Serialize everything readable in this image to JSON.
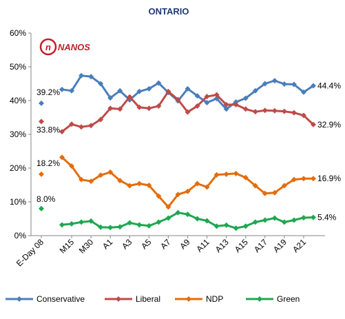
{
  "chart_data": {
    "type": "line",
    "title": "ONTARIO",
    "xlabel": "",
    "ylabel": "",
    "ylim": [
      0,
      60
    ],
    "y_ticks": [
      "0%",
      "10%",
      "20%",
      "30%",
      "40%",
      "50%",
      "60%"
    ],
    "y_tick_values": [
      0,
      10,
      20,
      30,
      40,
      50,
      60
    ],
    "x_tick_labels": [
      "E-Day 08",
      "M15",
      "M30",
      "A1",
      "A3",
      "A5",
      "A7",
      "A9",
      "A11",
      "A13",
      "A15",
      "A17",
      "A19",
      "A21"
    ],
    "grid": false,
    "legend_position": "bottom",
    "logo_text": "NANOS",
    "baseline": {
      "label": "E-Day 08",
      "Conservative": 39.2,
      "Liberal": 33.8,
      "NDP": 18.2,
      "Green": 8.0
    },
    "series": [
      {
        "name": "Conservative",
        "color": "#4a7ebb",
        "values": [
          43.3,
          42.9,
          47.4,
          47.1,
          45.0,
          40.8,
          42.9,
          40.2,
          42.7,
          43.5,
          45.2,
          42.4,
          39.9,
          43.5,
          41.4,
          39.4,
          40.6,
          37.5,
          39.6,
          40.7,
          42.9,
          45.0,
          45.9,
          44.9,
          44.8,
          42.5,
          44.4
        ]
      },
      {
        "name": "Liberal",
        "color": "#be4b48",
        "values": [
          30.8,
          33.0,
          32.2,
          32.6,
          34.4,
          37.7,
          37.5,
          41.1,
          38.0,
          37.7,
          38.4,
          42.7,
          40.3,
          36.6,
          38.4,
          41.2,
          41.7,
          38.8,
          38.8,
          37.5,
          36.7,
          37.1,
          37.0,
          36.8,
          36.4,
          35.6,
          32.9
        ]
      },
      {
        "name": "NDP",
        "color": "#e46c0a",
        "values": [
          23.2,
          20.6,
          16.6,
          16.1,
          17.9,
          18.8,
          16.3,
          14.8,
          15.4,
          14.9,
          11.7,
          8.5,
          12.2,
          13.1,
          15.4,
          14.4,
          18.0,
          18.2,
          18.4,
          17.2,
          14.8,
          12.5,
          12.7,
          14.8,
          16.6,
          16.9,
          16.9
        ]
      },
      {
        "name": "Green",
        "color": "#1fa750",
        "values": [
          3.2,
          3.5,
          4.0,
          4.3,
          2.5,
          2.4,
          2.6,
          3.8,
          3.2,
          2.9,
          4.0,
          5.2,
          6.8,
          6.3,
          5.0,
          4.4,
          2.8,
          3.1,
          2.2,
          2.8,
          4.0,
          4.6,
          5.2,
          4.0,
          4.6,
          5.3,
          5.4
        ]
      }
    ],
    "labels": {
      "baseline": [
        "39.2%",
        "33.8%",
        "18.2%",
        "8.0%"
      ],
      "latest": [
        "44.4%",
        "32.9%",
        "16.9%",
        "5.4%"
      ]
    }
  }
}
